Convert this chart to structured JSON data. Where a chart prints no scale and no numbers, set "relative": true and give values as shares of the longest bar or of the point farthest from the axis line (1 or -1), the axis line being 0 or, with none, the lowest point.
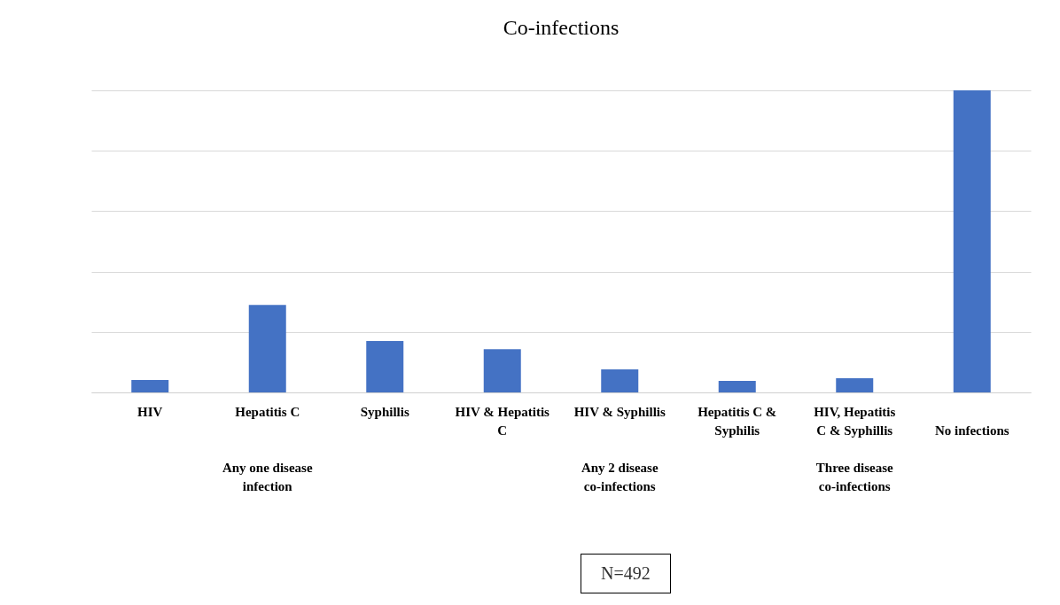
{
  "chart_data": {
    "type": "bar",
    "title": "Co-infections",
    "relative": true,
    "grid": "y",
    "color": "#4472c4",
    "categories": [
      "HIV",
      "Hepatitis C",
      "Syphillis",
      "HIV & Hepatitis C",
      "HIV & Syphillis",
      "Hepatitis C & Syphilis",
      "HIV, Hepatitis C & Syphillis",
      "No infections"
    ],
    "values": [
      0.041,
      0.29,
      0.17,
      0.143,
      0.076,
      0.038,
      0.047,
      1.0
    ],
    "annotations": [
      "Any one disease infection",
      "Any 2 disease co-infections",
      "Three disease co-infections",
      "N=492"
    ]
  }
}
